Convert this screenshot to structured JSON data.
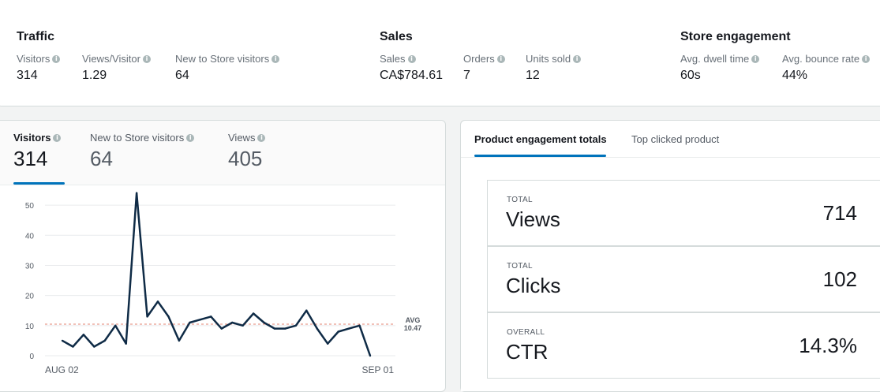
{
  "summary": {
    "traffic": {
      "title": "Traffic",
      "metrics": [
        {
          "label": "Visitors",
          "value": "314"
        },
        {
          "label": "Views/Visitor",
          "value": "1.29"
        },
        {
          "label": "New to Store visitors",
          "value": "64"
        }
      ]
    },
    "sales": {
      "title": "Sales",
      "metrics": [
        {
          "label": "Sales",
          "value": "CA$784.61"
        },
        {
          "label": "Orders",
          "value": "7"
        },
        {
          "label": "Units sold",
          "value": "12"
        }
      ]
    },
    "engagement": {
      "title": "Store engagement",
      "metrics": [
        {
          "label": "Avg. dwell time",
          "value": "60s"
        },
        {
          "label": "Avg. bounce rate",
          "value": "44%"
        }
      ]
    }
  },
  "chart_tabs": [
    {
      "label": "Visitors",
      "value": "314",
      "active": true
    },
    {
      "label": "New to Store visitors",
      "value": "64",
      "active": false
    },
    {
      "label": "Views",
      "value": "405",
      "active": false
    }
  ],
  "product_tabs": [
    {
      "label": "Product engagement totals",
      "active": true
    },
    {
      "label": "Top clicked product",
      "active": false
    }
  ],
  "product_stats": [
    {
      "kicker": "TOTAL",
      "name": "Views",
      "value": "714"
    },
    {
      "kicker": "TOTAL",
      "name": "Clicks",
      "value": "102"
    },
    {
      "kicker": "OVERALL",
      "name": "CTR",
      "value": "14.3%"
    }
  ],
  "info_glyph": "i",
  "colors": {
    "accent": "#0073bb",
    "line": "#0f2b46",
    "avg_line": "#d13212"
  },
  "chart_data": {
    "type": "line",
    "series": [
      {
        "values": [
          5,
          3,
          7,
          3,
          5,
          10,
          4,
          54,
          13,
          18,
          13,
          5,
          11,
          12,
          13,
          9,
          11,
          10,
          14,
          11,
          9,
          9,
          10,
          15,
          9,
          4,
          8,
          9,
          10,
          0
        ]
      }
    ],
    "x_labels": [
      "AUG 02",
      "SEP 01"
    ],
    "y_ticks": [
      0,
      10,
      20,
      30,
      40,
      50
    ],
    "ylim": [
      0,
      55
    ],
    "avg": {
      "label": "AVG",
      "value": "10.47",
      "y": 10.47
    },
    "grid": true
  }
}
